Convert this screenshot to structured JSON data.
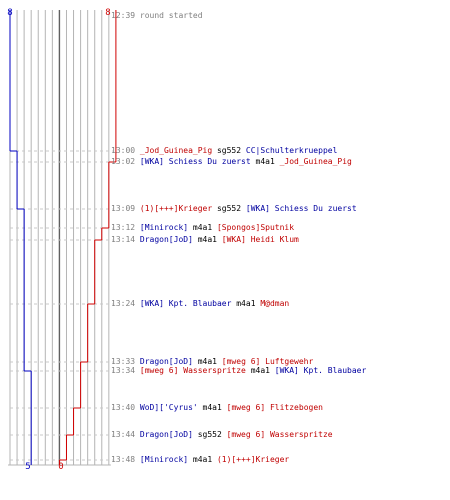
{
  "colors": {
    "team_blue": "#0000c0",
    "team_red": "#d00000",
    "grid": "#b4b4b4",
    "grid_dark": "#606060",
    "dash": "#c8c8c8",
    "time_text": "#808080",
    "blue_text": "#0000a0",
    "red_text": "#c00000",
    "weapon_text": "#000000"
  },
  "scoreboard": {
    "blue_start": "8",
    "red_start": "8",
    "blue_end": "5",
    "red_end": "0"
  },
  "events": [
    {
      "time": "12:39",
      "blue_left": 8,
      "red_left": 8,
      "parts": [
        {
          "text": " round started",
          "color": "gray"
        }
      ]
    },
    {
      "time": "13:00",
      "blue_left": 7,
      "red_left": 8,
      "parts": [
        {
          "text": " _Jod_Guinea_Pig",
          "color": "red"
        },
        {
          "text": " sg552 ",
          "color": "black"
        },
        {
          "text": "CC|Schulterkrueppel",
          "color": "blue"
        }
      ]
    },
    {
      "time": "13:02",
      "blue_left": 7,
      "red_left": 7,
      "parts": [
        {
          "text": " [WKA] Schiess Du zuerst",
          "color": "blue"
        },
        {
          "text": " m4a1 ",
          "color": "black"
        },
        {
          "text": "_Jod_Guinea_Pig",
          "color": "red"
        }
      ]
    },
    {
      "time": "13:09",
      "blue_left": 6,
      "red_left": 7,
      "parts": [
        {
          "text": " (1)[+++]Krieger",
          "color": "red"
        },
        {
          "text": " sg552 ",
          "color": "black"
        },
        {
          "text": "[WKA] Schiess Du zuerst",
          "color": "blue"
        }
      ]
    },
    {
      "time": "13:12",
      "blue_left": 6,
      "red_left": 6,
      "parts": [
        {
          "text": " [Minirock]",
          "color": "blue"
        },
        {
          "text": " m4a1 ",
          "color": "black"
        },
        {
          "text": "[Spongos]Sputnik",
          "color": "red"
        }
      ]
    },
    {
      "time": "13:14",
      "blue_left": 6,
      "red_left": 5,
      "parts": [
        {
          "text": " Dragon[JoD]",
          "color": "blue"
        },
        {
          "text": " m4a1 ",
          "color": "black"
        },
        {
          "text": "[WKA] Heidi Klum",
          "color": "red"
        }
      ]
    },
    {
      "time": "13:24",
      "blue_left": 6,
      "red_left": 4,
      "parts": [
        {
          "text": " [WKA] Kpt. Blaubaer",
          "color": "blue"
        },
        {
          "text": " m4a1 ",
          "color": "black"
        },
        {
          "text": "M@dman",
          "color": "red"
        }
      ]
    },
    {
      "time": "13:33",
      "blue_left": 6,
      "red_left": 3,
      "parts": [
        {
          "text": " Dragon[JoD]",
          "color": "blue"
        },
        {
          "text": " m4a1 ",
          "color": "black"
        },
        {
          "text": "[mweg 6] Luftgewehr",
          "color": "red"
        }
      ]
    },
    {
      "time": "13:34",
      "blue_left": 5,
      "red_left": 3,
      "parts": [
        {
          "text": " [mweg 6] Wasserspritze",
          "color": "red"
        },
        {
          "text": " m4a1 ",
          "color": "black"
        },
        {
          "text": "[WKA] Kpt. Blaubaer",
          "color": "blue"
        }
      ]
    },
    {
      "time": "13:40",
      "blue_left": 5,
      "red_left": 2,
      "parts": [
        {
          "text": " WoD]['Cyrus'",
          "color": "blue"
        },
        {
          "text": " m4a1 ",
          "color": "black"
        },
        {
          "text": "[mweg 6] Flitzebogen",
          "color": "red"
        }
      ]
    },
    {
      "time": "13:44",
      "blue_left": 5,
      "red_left": 1,
      "parts": [
        {
          "text": " Dragon[JoD]",
          "color": "blue"
        },
        {
          "text": " sg552 ",
          "color": "black"
        },
        {
          "text": "[mweg 6] Wasserspritze",
          "color": "red"
        }
      ]
    },
    {
      "time": "13:48",
      "blue_left": 5,
      "red_left": 0,
      "parts": [
        {
          "text": " [Minirock]",
          "color": "blue"
        },
        {
          "text": " m4a1 ",
          "color": "black"
        },
        {
          "text": "(1)[+++]Krieger",
          "color": "red"
        }
      ]
    }
  ]
}
